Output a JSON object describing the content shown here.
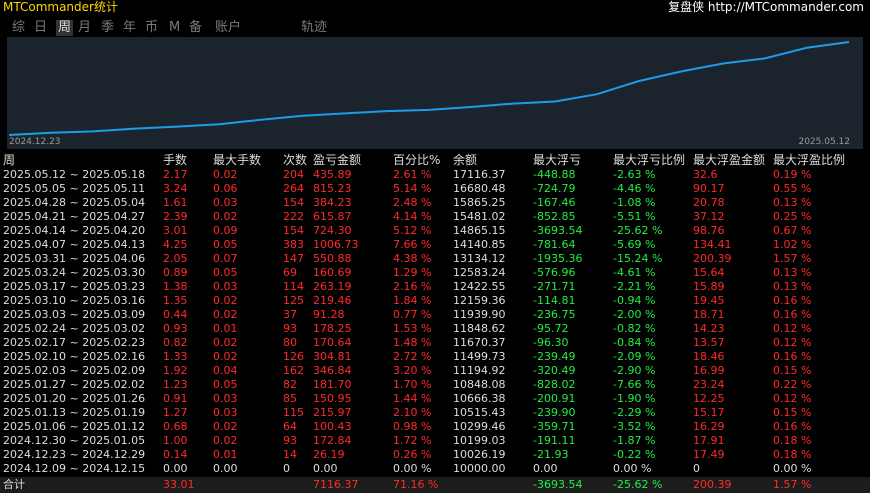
{
  "header": {
    "title": "MTCommander统计",
    "brand": "复盘侠 http://MTCommander.com"
  },
  "tabs": {
    "items": [
      "综",
      "日",
      "周",
      "月",
      "季",
      "年",
      "币",
      "M",
      "备",
      "账户"
    ],
    "active": 2,
    "view": "轨迹"
  },
  "chart": {
    "start_label": "2024.12.23",
    "end_label": "2025.05.12",
    "color": "#1e9be8"
  },
  "table": {
    "columns": [
      {
        "label": "周",
        "color": "#dddddd"
      },
      {
        "label": "手数",
        "color": "#ff2a2a"
      },
      {
        "label": "最大手数",
        "color": "#ff2a2a"
      },
      {
        "label": "次数",
        "color": "#ff2a2a"
      },
      {
        "label": "盈亏金额",
        "color": "#ff2a2a"
      },
      {
        "label": "百分比%",
        "color": "#ff2a2a"
      },
      {
        "label": "余额",
        "color": "#dddddd"
      },
      {
        "label": "最大浮亏",
        "color": "#22ee44"
      },
      {
        "label": "最大浮亏比例",
        "color": "#22ee44"
      },
      {
        "label": "最大浮盈金额",
        "color": "#ff2a2a"
      },
      {
        "label": "最大浮盈比例",
        "color": "#ff2a2a"
      }
    ],
    "rows": [
      [
        "2025.05.12 ~ 2025.05.18",
        "2.17",
        "0.02",
        "204",
        "435.89",
        "2.61 %",
        "17116.37",
        "-448.88",
        "-2.63 %",
        "32.6",
        "0.19 %"
      ],
      [
        "2025.05.05 ~ 2025.05.11",
        "3.24",
        "0.06",
        "264",
        "815.23",
        "5.14 %",
        "16680.48",
        "-724.79",
        "-4.46 %",
        "90.17",
        "0.55 %"
      ],
      [
        "2025.04.28 ~ 2025.05.04",
        "1.61",
        "0.03",
        "154",
        "384.23",
        "2.48 %",
        "15865.25",
        "-167.46",
        "-1.08 %",
        "20.78",
        "0.13 %"
      ],
      [
        "2025.04.21 ~ 2025.04.27",
        "2.39",
        "0.02",
        "222",
        "615.87",
        "4.14 %",
        "15481.02",
        "-852.85",
        "-5.51 %",
        "37.12",
        "0.25 %"
      ],
      [
        "2025.04.14 ~ 2025.04.20",
        "3.01",
        "0.09",
        "154",
        "724.30",
        "5.12 %",
        "14865.15",
        "-3693.54",
        "-25.62 %",
        "98.76",
        "0.67 %"
      ],
      [
        "2025.04.07 ~ 2025.04.13",
        "4.25",
        "0.05",
        "383",
        "1006.73",
        "7.66 %",
        "14140.85",
        "-781.64",
        "-5.69 %",
        "134.41",
        "1.02 %"
      ],
      [
        "2025.03.31 ~ 2025.04.06",
        "2.05",
        "0.07",
        "147",
        "550.88",
        "4.38 %",
        "13134.12",
        "-1935.36",
        "-15.24 %",
        "200.39",
        "1.57 %"
      ],
      [
        "2025.03.24 ~ 2025.03.30",
        "0.89",
        "0.05",
        "69",
        "160.69",
        "1.29 %",
        "12583.24",
        "-576.96",
        "-4.61 %",
        "15.64",
        "0.13 %"
      ],
      [
        "2025.03.17 ~ 2025.03.23",
        "1.38",
        "0.03",
        "114",
        "263.19",
        "2.16 %",
        "12422.55",
        "-271.71",
        "-2.21 %",
        "15.89",
        "0.13 %"
      ],
      [
        "2025.03.10 ~ 2025.03.16",
        "1.35",
        "0.02",
        "125",
        "219.46",
        "1.84 %",
        "12159.36",
        "-114.81",
        "-0.94 %",
        "19.45",
        "0.16 %"
      ],
      [
        "2025.03.03 ~ 2025.03.09",
        "0.44",
        "0.02",
        "37",
        "91.28",
        "0.77 %",
        "11939.90",
        "-236.75",
        "-2.00 %",
        "18.71",
        "0.16 %"
      ],
      [
        "2025.02.24 ~ 2025.03.02",
        "0.93",
        "0.01",
        "93",
        "178.25",
        "1.53 %",
        "11848.62",
        "-95.72",
        "-0.82 %",
        "14.23",
        "0.12 %"
      ],
      [
        "2025.02.17 ~ 2025.02.23",
        "0.82",
        "0.02",
        "80",
        "170.64",
        "1.48 %",
        "11670.37",
        "-96.30",
        "-0.84 %",
        "13.57",
        "0.12 %"
      ],
      [
        "2025.02.10 ~ 2025.02.16",
        "1.33",
        "0.02",
        "126",
        "304.81",
        "2.72 %",
        "11499.73",
        "-239.49",
        "-2.09 %",
        "18.46",
        "0.16 %"
      ],
      [
        "2025.02.03 ~ 2025.02.09",
        "1.92",
        "0.04",
        "162",
        "346.84",
        "3.20 %",
        "11194.92",
        "-320.49",
        "-2.90 %",
        "16.99",
        "0.15 %"
      ],
      [
        "2025.01.27 ~ 2025.02.02",
        "1.23",
        "0.05",
        "82",
        "181.70",
        "1.70 %",
        "10848.08",
        "-828.02",
        "-7.66 %",
        "23.24",
        "0.22 %"
      ],
      [
        "2025.01.20 ~ 2025.01.26",
        "0.91",
        "0.03",
        "85",
        "150.95",
        "1.44 %",
        "10666.38",
        "-200.91",
        "-1.90 %",
        "12.25",
        "0.12 %"
      ],
      [
        "2025.01.13 ~ 2025.01.19",
        "1.27",
        "0.03",
        "115",
        "215.97",
        "2.10 %",
        "10515.43",
        "-239.90",
        "-2.29 %",
        "15.17",
        "0.15 %"
      ],
      [
        "2025.01.06 ~ 2025.01.12",
        "0.68",
        "0.02",
        "64",
        "100.43",
        "0.98 %",
        "10299.46",
        "-359.71",
        "-3.52 %",
        "16.29",
        "0.16 %"
      ],
      [
        "2024.12.30 ~ 2025.01.05",
        "1.00",
        "0.02",
        "93",
        "172.84",
        "1.72 %",
        "10199.03",
        "-191.11",
        "-1.87 %",
        "17.91",
        "0.18 %"
      ],
      [
        "2024.12.23 ~ 2024.12.29",
        "0.14",
        "0.01",
        "14",
        "26.19",
        "0.26 %",
        "10026.19",
        "-21.93",
        "-0.22 %",
        "17.49",
        "0.18 %"
      ],
      [
        "2024.12.09 ~ 2024.12.15",
        "0.00",
        "0.00",
        "0",
        "0.00",
        "0.00 %",
        "10000.00",
        "0.00",
        "0.00 %",
        "0",
        "0.00 %"
      ]
    ],
    "total": [
      {
        "col": 0,
        "text": "合计"
      },
      {
        "col": 1,
        "text": "33.01"
      },
      {
        "col": 4,
        "text": "7116.37"
      },
      {
        "col": 5,
        "text": "71.16 %"
      },
      {
        "col": 7,
        "text": "-3693.54"
      },
      {
        "col": 8,
        "text": "-25.62 %"
      },
      {
        "col": 9,
        "text": "200.39"
      },
      {
        "col": 10,
        "text": "1.57 %"
      }
    ]
  }
}
